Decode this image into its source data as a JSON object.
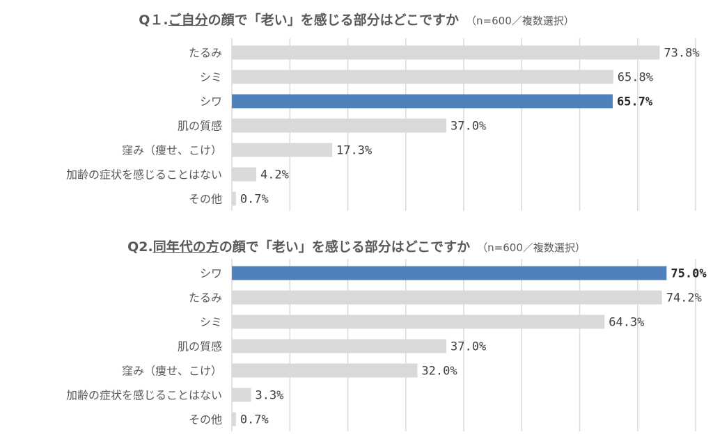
{
  "colors": {
    "bar": "#d9d9d9",
    "highlight": "#4f81bd",
    "grid": "#d9d9d9",
    "text": "#595959"
  },
  "chart_data": [
    {
      "type": "bar",
      "orientation": "horizontal",
      "title_prefix": "Q１.",
      "title_underlined": "ご自分",
      "title_rest": "の顔で「老い」を感じる部分はどこですか",
      "note": "（n=600／複数選択）",
      "categories": [
        "たるみ",
        "シミ",
        "シワ",
        "肌の質感",
        "窪み（痩せ、こけ）",
        "加齢の症状を感じることはない",
        "その他"
      ],
      "values": [
        73.8,
        65.8,
        65.7,
        37.0,
        17.3,
        4.2,
        0.7
      ],
      "value_labels": [
        "73.8%",
        "65.8%",
        "65.7%",
        "37.0%",
        "17.3%",
        "4.2%",
        "0.7%"
      ],
      "highlight": [
        "シワ"
      ],
      "xlim": [
        0,
        80
      ],
      "grid": true
    },
    {
      "type": "bar",
      "orientation": "horizontal",
      "title_prefix": "Q2.",
      "title_underlined": "同年代の方",
      "title_rest": "の顔で「老い」を感じる部分はどこですか",
      "note": "（n=600／複数選択）",
      "categories": [
        "シワ",
        "たるみ",
        "シミ",
        "肌の質感",
        "窪み（痩せ、こけ）",
        "加齢の症状を感じることはない",
        "その他"
      ],
      "values": [
        75.0,
        74.2,
        64.3,
        37.0,
        32.0,
        3.3,
        0.7
      ],
      "value_labels": [
        "75.0%",
        "74.2%",
        "64.3%",
        "37.0%",
        "32.0%",
        "3.3%",
        "0.7%"
      ],
      "highlight": [
        "シワ"
      ],
      "xlim": [
        0,
        80
      ],
      "grid": true
    }
  ]
}
